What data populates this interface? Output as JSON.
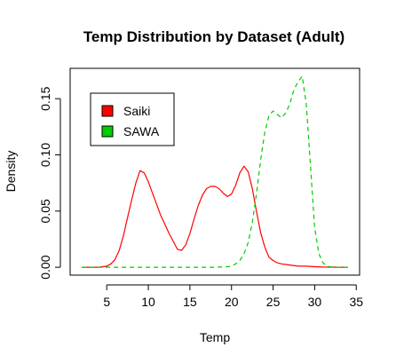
{
  "chart_data": {
    "type": "line",
    "title": "Temp Distribution by Dataset (Adult)",
    "xlabel": "Temp",
    "ylabel": "Density",
    "xlim": [
      0.6,
      35.4
    ],
    "ylim": [
      -0.007,
      0.177
    ],
    "x_ticks": [
      {
        "value": 5,
        "label": "5"
      },
      {
        "value": 10,
        "label": "10"
      },
      {
        "value": 15,
        "label": "15"
      },
      {
        "value": 20,
        "label": "20"
      },
      {
        "value": 25,
        "label": "25"
      },
      {
        "value": 30,
        "label": "30"
      },
      {
        "value": 35,
        "label": "35"
      }
    ],
    "y_ticks": [
      {
        "value": 0.0,
        "label": "0.00"
      },
      {
        "value": 0.05,
        "label": "0.05"
      },
      {
        "value": 0.1,
        "label": "0.10"
      },
      {
        "value": 0.15,
        "label": "0.15"
      }
    ],
    "grid": false,
    "legend_position": "top-left",
    "series": [
      {
        "name": "Saiki",
        "color": "#ff0000",
        "line_style": "solid",
        "x": [
          2,
          3,
          4,
          5,
          5.5,
          6,
          6.5,
          7,
          7.5,
          8,
          8.5,
          9,
          9.5,
          10,
          10.5,
          11,
          11.5,
          12,
          12.5,
          13,
          13.5,
          14,
          14.5,
          15,
          15.5,
          16,
          16.5,
          17,
          17.5,
          18,
          18.5,
          19,
          19.5,
          20,
          20.5,
          21,
          21.5,
          22,
          22.5,
          23,
          23.5,
          24,
          24.5,
          25,
          25.5,
          26,
          27,
          28,
          29,
          30,
          31,
          32,
          33,
          34
        ],
        "y": [
          0,
          0,
          0,
          0.001,
          0.003,
          0.007,
          0.015,
          0.028,
          0.044,
          0.06,
          0.075,
          0.086,
          0.084,
          0.076,
          0.066,
          0.056,
          0.046,
          0.038,
          0.03,
          0.023,
          0.016,
          0.015,
          0.02,
          0.03,
          0.043,
          0.055,
          0.064,
          0.07,
          0.072,
          0.072,
          0.07,
          0.066,
          0.063,
          0.065,
          0.073,
          0.084,
          0.09,
          0.085,
          0.07,
          0.05,
          0.031,
          0.018,
          0.009,
          0.006,
          0.004,
          0.003,
          0.002,
          0.001,
          0.001,
          0.0005,
          0.0002,
          0.0001,
          0,
          0
        ]
      },
      {
        "name": "SAWA",
        "color": "#00cd00",
        "line_style": "dashed",
        "x": [
          2,
          5,
          10,
          15,
          18,
          19.5,
          20,
          20.5,
          21,
          21.5,
          22,
          22.5,
          23,
          23.5,
          24,
          24.5,
          25,
          25.5,
          26,
          26.5,
          27,
          27.5,
          28,
          28.5,
          29,
          29.5,
          30,
          30.5,
          31,
          31.5,
          32,
          33,
          34
        ],
        "y": [
          0,
          0,
          0,
          0,
          0,
          0.0005,
          0.001,
          0.003,
          0.006,
          0.012,
          0.022,
          0.04,
          0.065,
          0.095,
          0.12,
          0.135,
          0.139,
          0.136,
          0.133,
          0.137,
          0.145,
          0.158,
          0.165,
          0.17,
          0.145,
          0.09,
          0.035,
          0.012,
          0.004,
          0.001,
          0.0003,
          0,
          0
        ]
      }
    ]
  }
}
